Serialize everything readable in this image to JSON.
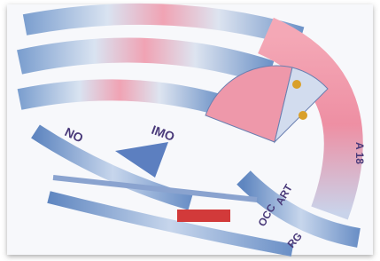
{
  "labels": [
    {
      "text": "NO"
    },
    {
      "text": "IMO"
    },
    {
      "text": "A 18"
    },
    {
      "text": "ART"
    },
    {
      "text": "OCC"
    },
    {
      "text": "RG"
    }
  ]
}
